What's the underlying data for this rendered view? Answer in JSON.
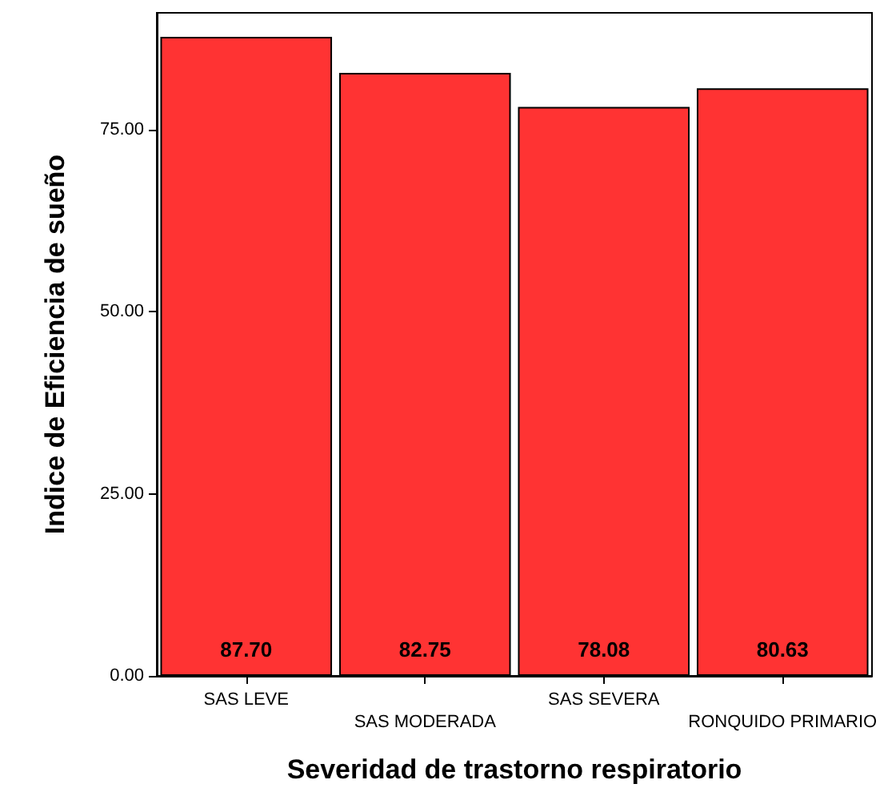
{
  "chart_data": {
    "type": "bar",
    "xlabel": "Severidad de trastorno respiratorio",
    "ylabel": "Indice de Eficiencia de sueño",
    "categories": [
      "SAS LEVE",
      "SAS MODERADA",
      "SAS SEVERA",
      "RONQUIDO PRIMARIO"
    ],
    "values": [
      87.7,
      82.75,
      78.08,
      80.63
    ],
    "color": "#ff3333",
    "value_labels": [
      "87.70",
      "82.75",
      "78.08",
      "80.63"
    ],
    "ylim": [
      0,
      91
    ],
    "yticks": [
      {
        "value": 0,
        "label": "0.00"
      },
      {
        "value": 25,
        "label": "25.00"
      },
      {
        "value": 50,
        "label": "50.00"
      },
      {
        "value": 75,
        "label": "75.00"
      }
    ],
    "grid": false
  }
}
